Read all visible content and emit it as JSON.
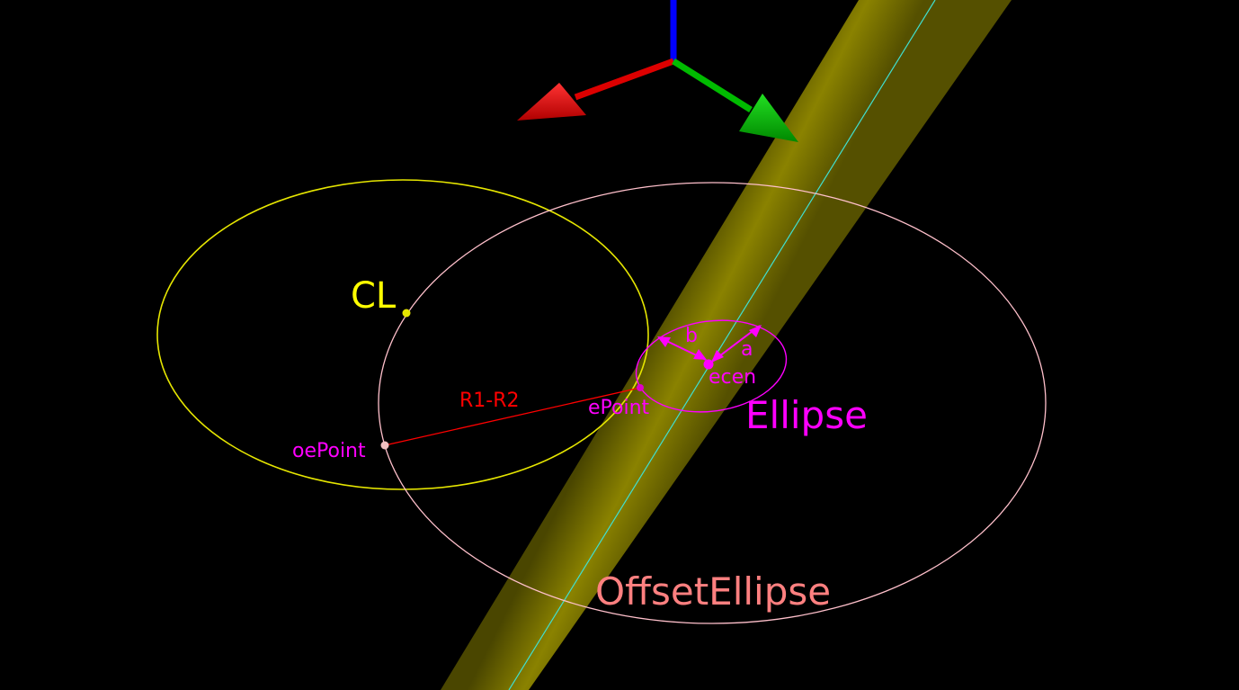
{
  "labels": {
    "cl": "CL",
    "r1_r2": "R1-R2",
    "e_point": "ePoint",
    "oe_point": "oePoint",
    "ecen": "ecen",
    "a": "a",
    "b": "b",
    "ellipse": "Ellipse",
    "offset_ellipse": "OffsetEllipse"
  },
  "colors": {
    "background": "#000000",
    "cl": "#ffff00",
    "cl_circle": "#e6e600",
    "offset_ellipse": "#ffc0cb",
    "offset_ellipse_label": "#ff8080",
    "ellipse": "#ff00ff",
    "r1_r2": "#ff0000",
    "cylinder": "#808000",
    "cylinder_axis": "#40e0d0",
    "axis_x": "#ff0000",
    "axis_y": "#00cc00",
    "axis_z": "#0000ff"
  },
  "icons": {
    "axes": "xyz-axes-gizmo-icon"
  }
}
